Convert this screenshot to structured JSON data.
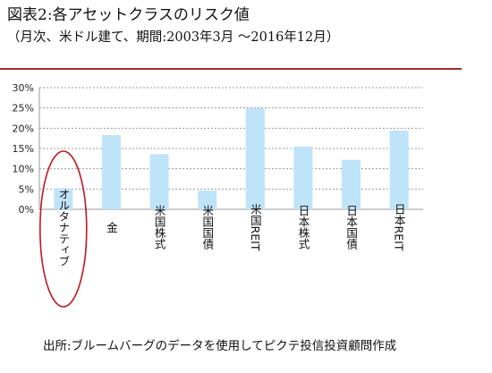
{
  "header": {
    "title": "図表2:各アセットクラスのリスク値",
    "subtitle": "（月次、米ドル建て、期間:2003年3月 ～2016年12月）"
  },
  "footer": {
    "source": "出所:ブルームバーグのデータを使用してピクテ投信投資顧問作成"
  },
  "colors": {
    "bar": "#bfe3f9",
    "grid": "#9a9a9a",
    "highlight": "#c0181e",
    "divider": "#a62a2a"
  },
  "chart_data": {
    "type": "bar",
    "title": "",
    "xlabel": "",
    "ylabel": "",
    "categories": [
      "オルタナティブ",
      "金",
      "米国株式",
      "米国国債",
      "米国REIT",
      "日本株式",
      "日本国債",
      "日本REIT"
    ],
    "values": [
      5.2,
      18.3,
      13.6,
      4.6,
      24.9,
      15.5,
      12.2,
      19.4
    ],
    "ylim": [
      0,
      30
    ],
    "yticks": [
      0,
      5,
      10,
      15,
      20,
      25,
      30
    ],
    "ytick_labels": [
      "0%",
      "5%",
      "10%",
      "15%",
      "20%",
      "25%",
      "30%"
    ],
    "grid": true,
    "highlighted_category": "オルタナティブ"
  }
}
